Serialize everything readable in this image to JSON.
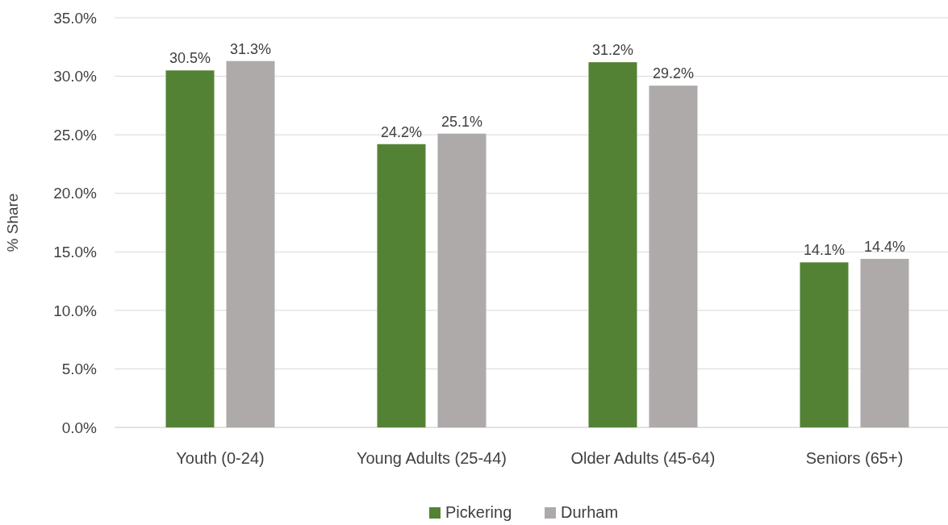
{
  "chart_data": {
    "type": "bar",
    "ylabel": "% Share",
    "categories": [
      "Youth (0-24)",
      "Young Adults (25-44)",
      "Older Adults (45-64)",
      "Seniors (65+)"
    ],
    "series": [
      {
        "name": "Pickering",
        "color": "#548235",
        "values": [
          30.5,
          24.2,
          31.2,
          14.1
        ],
        "value_labels": [
          "30.5%",
          "24.2%",
          "31.2%",
          "14.1%"
        ]
      },
      {
        "name": "Durham",
        "color": "#aeaaaa",
        "values": [
          31.3,
          25.1,
          29.2,
          14.4
        ],
        "value_labels": [
          "31.3%",
          "25.1%",
          "29.2%",
          "14.4%"
        ]
      }
    ],
    "ylim": [
      0,
      35
    ],
    "yticks": [
      {
        "value": 0,
        "label": "0.0%"
      },
      {
        "value": 5,
        "label": "5.0%"
      },
      {
        "value": 10,
        "label": "10.0%"
      },
      {
        "value": 15,
        "label": "15.0%"
      },
      {
        "value": 20,
        "label": "20.0%"
      },
      {
        "value": 25,
        "label": "25.0%"
      },
      {
        "value": 30,
        "label": "30.0%"
      },
      {
        "value": 35,
        "label": "35.0%"
      }
    ],
    "grid": "y",
    "legend": "bottom"
  }
}
